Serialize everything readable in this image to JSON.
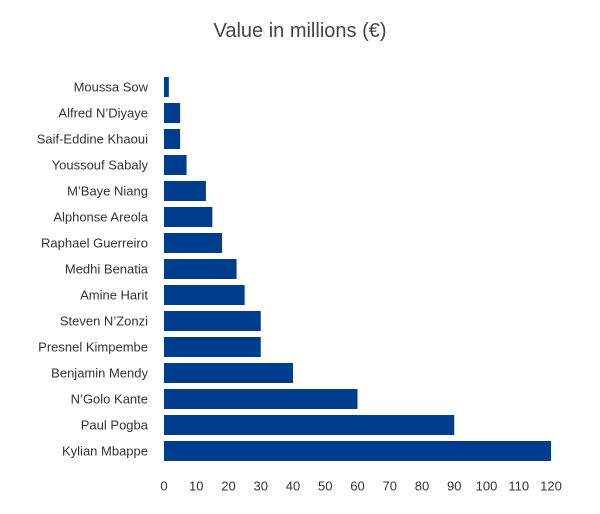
{
  "chart_data": {
    "type": "bar",
    "orientation": "horizontal",
    "title": "Value in millions (€)",
    "xlabel": "",
    "ylabel": "",
    "categories": [
      "Moussa Sow",
      "Alfred N’Diyaye",
      "Saif-Eddine Khaoui",
      "Youssouf Sabaly",
      "M’Baye Niang",
      "Alphonse Areola",
      "Raphael Guerreiro",
      "Medhi Benatia ",
      "Amine Harit",
      "Steven N’Zonzi",
      "Presnel Kimpembe",
      "Benjamin Mendy",
      "N’Golo Kante",
      "Paul Pogba",
      "Kylian Mbappe"
    ],
    "values": [
      1.5,
      5,
      5,
      7,
      13,
      15,
      18,
      22.5,
      25,
      30,
      30,
      40,
      60,
      90,
      120
    ],
    "xlim": [
      0,
      120
    ],
    "xticks": [
      0,
      10,
      20,
      30,
      40,
      50,
      60,
      70,
      80,
      90,
      100,
      110,
      120
    ],
    "grid": false,
    "legend": "none",
    "bar_color": "#003d8f",
    "label_color": "#333333",
    "title_color": "#444444"
  }
}
